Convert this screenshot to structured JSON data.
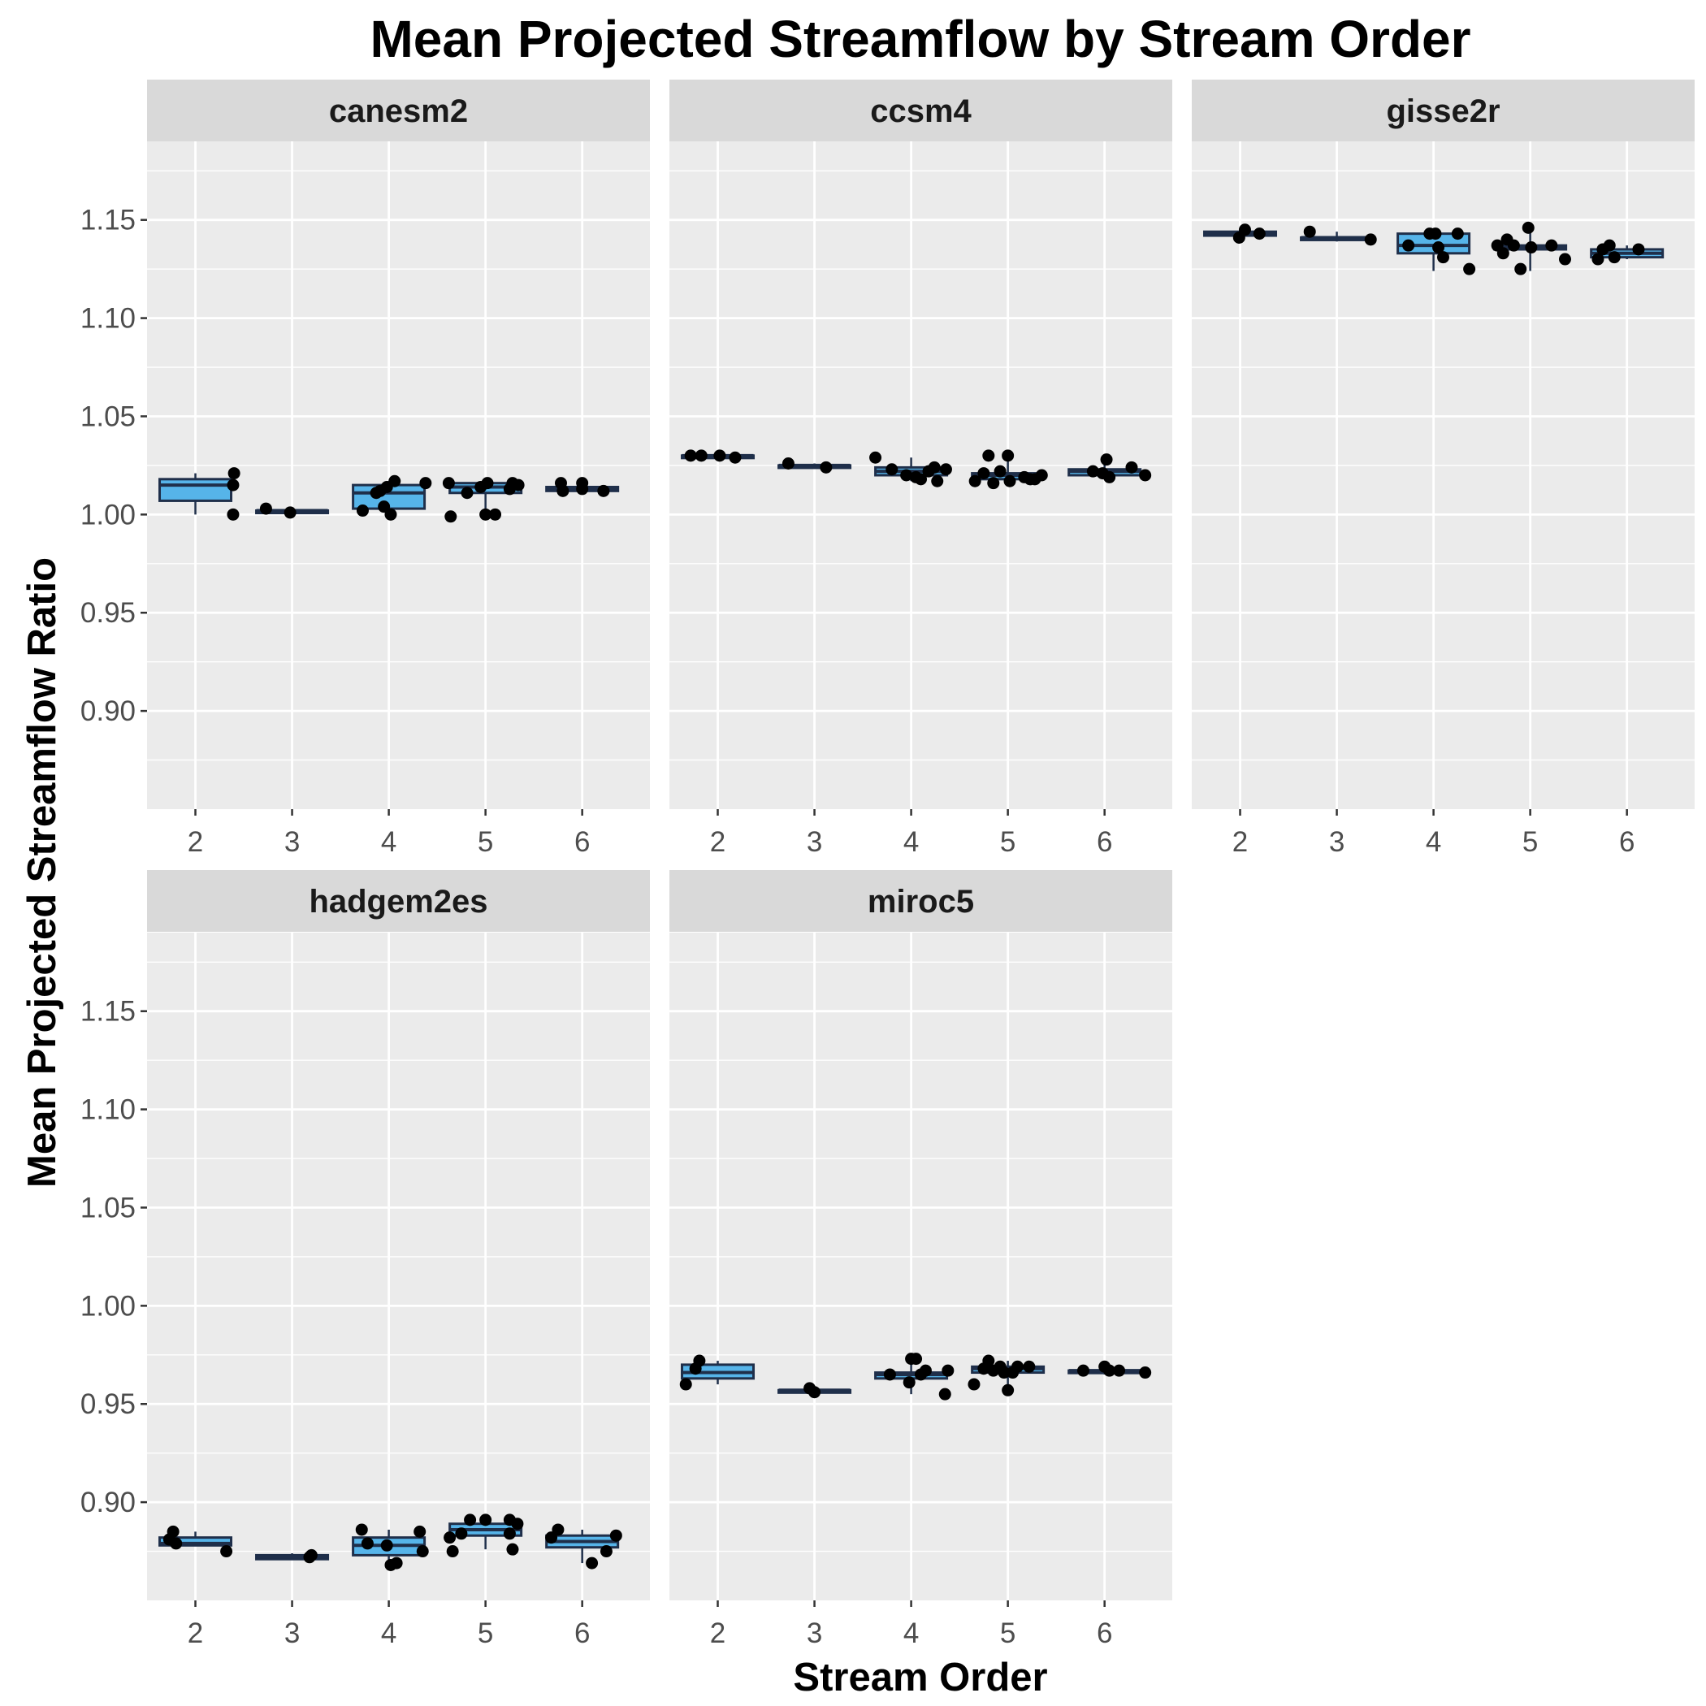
{
  "chart_data": {
    "type": "boxplot",
    "title": "Mean Projected Streamflow by Stream Order",
    "xlabel": "Stream Order",
    "ylabel": "Mean Projected Streamflow Ratio",
    "categories": [
      "2",
      "3",
      "4",
      "5",
      "6"
    ],
    "ylim": [
      0.85,
      1.19
    ],
    "yticks": [
      0.9,
      0.95,
      1.0,
      1.05,
      1.1,
      1.15
    ],
    "ytick_labels": [
      "0.90",
      "0.95",
      "1.00",
      "1.05",
      "1.10",
      "1.15"
    ],
    "grid": true,
    "colors": {
      "panel_bg": "#EBEBEB",
      "strip_bg": "#D9D9D9",
      "gridline": "#FFFFFF",
      "box_fill": "#56B4E9",
      "box_line": "#1F2F4A",
      "point": "#000000"
    },
    "panels": [
      {
        "label": "canesm2",
        "boxes": [
          {
            "x": "2",
            "lower": 1.0,
            "q1": 1.007,
            "median": 1.015,
            "q3": 1.018,
            "upper": 1.021
          },
          {
            "x": "3",
            "lower": 1.001,
            "q1": 1.001,
            "median": 1.002,
            "q3": 1.002,
            "upper": 1.003
          },
          {
            "x": "4",
            "lower": 1.0,
            "q1": 1.003,
            "median": 1.011,
            "q3": 1.015,
            "upper": 1.017
          },
          {
            "x": "5",
            "lower": 0.999,
            "q1": 1.011,
            "median": 1.014,
            "q3": 1.016,
            "upper": 1.017
          },
          {
            "x": "6",
            "lower": 1.012,
            "q1": 1.012,
            "median": 1.013,
            "q3": 1.014,
            "upper": 1.016
          }
        ],
        "points": [
          {
            "x": 2.4,
            "y": 1.021
          },
          {
            "x": 2.39,
            "y": 1.015
          },
          {
            "x": 2.39,
            "y": 1.0
          },
          {
            "x": 2.73,
            "y": 1.003
          },
          {
            "x": 2.98,
            "y": 1.001
          },
          {
            "x": 3.73,
            "y": 1.002
          },
          {
            "x": 3.87,
            "y": 1.011
          },
          {
            "x": 3.91,
            "y": 1.012
          },
          {
            "x": 3.95,
            "y": 1.004
          },
          {
            "x": 3.98,
            "y": 1.014
          },
          {
            "x": 4.06,
            "y": 1.017
          },
          {
            "x": 4.02,
            "y": 1.0
          },
          {
            "x": 4.38,
            "y": 1.016
          },
          {
            "x": 4.62,
            "y": 1.016
          },
          {
            "x": 4.64,
            "y": 0.999
          },
          {
            "x": 4.81,
            "y": 1.011
          },
          {
            "x": 4.95,
            "y": 1.014
          },
          {
            "x": 5.02,
            "y": 1.016
          },
          {
            "x": 5.0,
            "y": 1.0
          },
          {
            "x": 5.1,
            "y": 1.0
          },
          {
            "x": 5.25,
            "y": 1.013
          },
          {
            "x": 5.28,
            "y": 1.016
          },
          {
            "x": 5.34,
            "y": 1.015
          },
          {
            "x": 5.78,
            "y": 1.016
          },
          {
            "x": 5.8,
            "y": 1.012
          },
          {
            "x": 6.0,
            "y": 1.013
          },
          {
            "x": 6.0,
            "y": 1.016
          },
          {
            "x": 6.22,
            "y": 1.012
          }
        ]
      },
      {
        "label": "ccsm4",
        "boxes": [
          {
            "x": "2",
            "lower": 1.029,
            "q1": 1.029,
            "median": 1.03,
            "q3": 1.03,
            "upper": 1.031
          },
          {
            "x": "3",
            "lower": 1.024,
            "q1": 1.024,
            "median": 1.025,
            "q3": 1.025,
            "upper": 1.026
          },
          {
            "x": "4",
            "lower": 1.017,
            "q1": 1.02,
            "median": 1.022,
            "q3": 1.024,
            "upper": 1.029
          },
          {
            "x": "5",
            "lower": 1.016,
            "q1": 1.018,
            "median": 1.02,
            "q3": 1.021,
            "upper": 1.03
          },
          {
            "x": "6",
            "lower": 1.019,
            "q1": 1.02,
            "median": 1.022,
            "q3": 1.023,
            "upper": 1.028
          }
        ],
        "points": [
          {
            "x": 1.72,
            "y": 1.03
          },
          {
            "x": 1.83,
            "y": 1.03
          },
          {
            "x": 2.02,
            "y": 1.03
          },
          {
            "x": 2.18,
            "y": 1.029
          },
          {
            "x": 2.73,
            "y": 1.026
          },
          {
            "x": 3.12,
            "y": 1.024
          },
          {
            "x": 3.63,
            "y": 1.029
          },
          {
            "x": 3.8,
            "y": 1.023
          },
          {
            "x": 3.95,
            "y": 1.02
          },
          {
            "x": 4.05,
            "y": 1.019
          },
          {
            "x": 4.1,
            "y": 1.018
          },
          {
            "x": 4.18,
            "y": 1.022
          },
          {
            "x": 4.24,
            "y": 1.024
          },
          {
            "x": 4.27,
            "y": 1.017
          },
          {
            "x": 4.36,
            "y": 1.023
          },
          {
            "x": 4.66,
            "y": 1.017
          },
          {
            "x": 4.75,
            "y": 1.021
          },
          {
            "x": 4.8,
            "y": 1.03
          },
          {
            "x": 4.85,
            "y": 1.016
          },
          {
            "x": 4.92,
            "y": 1.022
          },
          {
            "x": 5.0,
            "y": 1.03
          },
          {
            "x": 5.02,
            "y": 1.017
          },
          {
            "x": 5.17,
            "y": 1.019
          },
          {
            "x": 5.23,
            "y": 1.018
          },
          {
            "x": 5.28,
            "y": 1.018
          },
          {
            "x": 5.35,
            "y": 1.02
          },
          {
            "x": 5.88,
            "y": 1.022
          },
          {
            "x": 5.98,
            "y": 1.021
          },
          {
            "x": 6.02,
            "y": 1.028
          },
          {
            "x": 6.05,
            "y": 1.019
          },
          {
            "x": 6.28,
            "y": 1.024
          },
          {
            "x": 6.42,
            "y": 1.02
          }
        ]
      },
      {
        "label": "gisse2r",
        "boxes": [
          {
            "x": "2",
            "lower": 1.141,
            "q1": 1.142,
            "median": 1.143,
            "q3": 1.144,
            "upper": 1.145
          },
          {
            "x": "3",
            "lower": 1.139,
            "q1": 1.14,
            "median": 1.141,
            "q3": 1.141,
            "upper": 1.144
          },
          {
            "x": "4",
            "lower": 1.124,
            "q1": 1.133,
            "median": 1.137,
            "q3": 1.143,
            "upper": 1.143
          },
          {
            "x": "5",
            "lower": 1.124,
            "q1": 1.135,
            "median": 1.136,
            "q3": 1.137,
            "upper": 1.147
          },
          {
            "x": "6",
            "lower": 1.13,
            "q1": 1.131,
            "median": 1.133,
            "q3": 1.135,
            "upper": 1.137
          }
        ],
        "points": [
          {
            "x": 1.99,
            "y": 1.141
          },
          {
            "x": 2.05,
            "y": 1.145
          },
          {
            "x": 2.2,
            "y": 1.143
          },
          {
            "x": 2.72,
            "y": 1.144
          },
          {
            "x": 3.35,
            "y": 1.14
          },
          {
            "x": 3.74,
            "y": 1.137
          },
          {
            "x": 3.96,
            "y": 1.143
          },
          {
            "x": 4.02,
            "y": 1.143
          },
          {
            "x": 4.05,
            "y": 1.136
          },
          {
            "x": 4.1,
            "y": 1.131
          },
          {
            "x": 4.25,
            "y": 1.143
          },
          {
            "x": 4.37,
            "y": 1.125
          },
          {
            "x": 4.66,
            "y": 1.137
          },
          {
            "x": 4.72,
            "y": 1.133
          },
          {
            "x": 4.76,
            "y": 1.14
          },
          {
            "x": 4.83,
            "y": 1.137
          },
          {
            "x": 4.9,
            "y": 1.125
          },
          {
            "x": 4.98,
            "y": 1.146
          },
          {
            "x": 5.01,
            "y": 1.136
          },
          {
            "x": 5.22,
            "y": 1.137
          },
          {
            "x": 5.36,
            "y": 1.13
          },
          {
            "x": 5.7,
            "y": 1.13
          },
          {
            "x": 5.75,
            "y": 1.135
          },
          {
            "x": 5.82,
            "y": 1.137
          },
          {
            "x": 5.87,
            "y": 1.131
          },
          {
            "x": 6.12,
            "y": 1.135
          }
        ]
      },
      {
        "label": "hadgem2es",
        "boxes": [
          {
            "x": "2",
            "lower": 0.878,
            "q1": 0.878,
            "median": 0.879,
            "q3": 0.882,
            "upper": 0.885
          },
          {
            "x": "3",
            "lower": 0.871,
            "q1": 0.871,
            "median": 0.872,
            "q3": 0.873,
            "upper": 0.874
          },
          {
            "x": "4",
            "lower": 0.868,
            "q1": 0.873,
            "median": 0.878,
            "q3": 0.882,
            "upper": 0.886
          },
          {
            "x": "5",
            "lower": 0.876,
            "q1": 0.883,
            "median": 0.886,
            "q3": 0.889,
            "upper": 0.89
          },
          {
            "x": "6",
            "lower": 0.869,
            "q1": 0.877,
            "median": 0.88,
            "q3": 0.883,
            "upper": 0.886
          }
        ],
        "points": [
          {
            "x": 1.73,
            "y": 0.881
          },
          {
            "x": 1.77,
            "y": 0.885
          },
          {
            "x": 1.8,
            "y": 0.879
          },
          {
            "x": 2.32,
            "y": 0.875
          },
          {
            "x": 3.18,
            "y": 0.872
          },
          {
            "x": 3.2,
            "y": 0.873
          },
          {
            "x": 3.72,
            "y": 0.886
          },
          {
            "x": 3.78,
            "y": 0.879
          },
          {
            "x": 3.98,
            "y": 0.878
          },
          {
            "x": 4.02,
            "y": 0.868
          },
          {
            "x": 4.08,
            "y": 0.869
          },
          {
            "x": 4.32,
            "y": 0.885
          },
          {
            "x": 4.35,
            "y": 0.875
          },
          {
            "x": 4.63,
            "y": 0.882
          },
          {
            "x": 4.66,
            "y": 0.875
          },
          {
            "x": 4.75,
            "y": 0.884
          },
          {
            "x": 4.84,
            "y": 0.891
          },
          {
            "x": 5.0,
            "y": 0.891
          },
          {
            "x": 5.25,
            "y": 0.884
          },
          {
            "x": 5.25,
            "y": 0.891
          },
          {
            "x": 5.28,
            "y": 0.876
          },
          {
            "x": 5.33,
            "y": 0.889
          },
          {
            "x": 5.68,
            "y": 0.882
          },
          {
            "x": 5.75,
            "y": 0.886
          },
          {
            "x": 6.1,
            "y": 0.869
          },
          {
            "x": 6.25,
            "y": 0.875
          },
          {
            "x": 6.35,
            "y": 0.883
          }
        ]
      },
      {
        "label": "miroc5",
        "boxes": [
          {
            "x": "2",
            "lower": 0.96,
            "q1": 0.963,
            "median": 0.966,
            "q3": 0.97,
            "upper": 0.972
          },
          {
            "x": "3",
            "lower": 0.956,
            "q1": 0.956,
            "median": 0.957,
            "q3": 0.957,
            "upper": 0.958
          },
          {
            "x": "4",
            "lower": 0.955,
            "q1": 0.963,
            "median": 0.965,
            "q3": 0.966,
            "upper": 0.973
          },
          {
            "x": "5",
            "lower": 0.957,
            "q1": 0.966,
            "median": 0.968,
            "q3": 0.969,
            "upper": 0.972
          },
          {
            "x": "6",
            "lower": 0.965,
            "q1": 0.966,
            "median": 0.967,
            "q3": 0.967,
            "upper": 0.969
          }
        ],
        "points": [
          {
            "x": 1.67,
            "y": 0.96
          },
          {
            "x": 1.77,
            "y": 0.968
          },
          {
            "x": 1.81,
            "y": 0.972
          },
          {
            "x": 2.95,
            "y": 0.958
          },
          {
            "x": 3.0,
            "y": 0.956
          },
          {
            "x": 3.78,
            "y": 0.965
          },
          {
            "x": 3.98,
            "y": 0.961
          },
          {
            "x": 4.0,
            "y": 0.973
          },
          {
            "x": 4.05,
            "y": 0.973
          },
          {
            "x": 4.1,
            "y": 0.965
          },
          {
            "x": 4.15,
            "y": 0.967
          },
          {
            "x": 4.35,
            "y": 0.955
          },
          {
            "x": 4.38,
            "y": 0.967
          },
          {
            "x": 4.65,
            "y": 0.96
          },
          {
            "x": 4.75,
            "y": 0.968
          },
          {
            "x": 4.8,
            "y": 0.972
          },
          {
            "x": 4.85,
            "y": 0.967
          },
          {
            "x": 4.92,
            "y": 0.969
          },
          {
            "x": 4.96,
            "y": 0.966
          },
          {
            "x": 5.0,
            "y": 0.957
          },
          {
            "x": 5.05,
            "y": 0.966
          },
          {
            "x": 5.1,
            "y": 0.969
          },
          {
            "x": 5.22,
            "y": 0.969
          },
          {
            "x": 5.78,
            "y": 0.967
          },
          {
            "x": 6.0,
            "y": 0.969
          },
          {
            "x": 6.05,
            "y": 0.967
          },
          {
            "x": 6.15,
            "y": 0.967
          },
          {
            "x": 6.42,
            "y": 0.966
          }
        ]
      }
    ]
  }
}
